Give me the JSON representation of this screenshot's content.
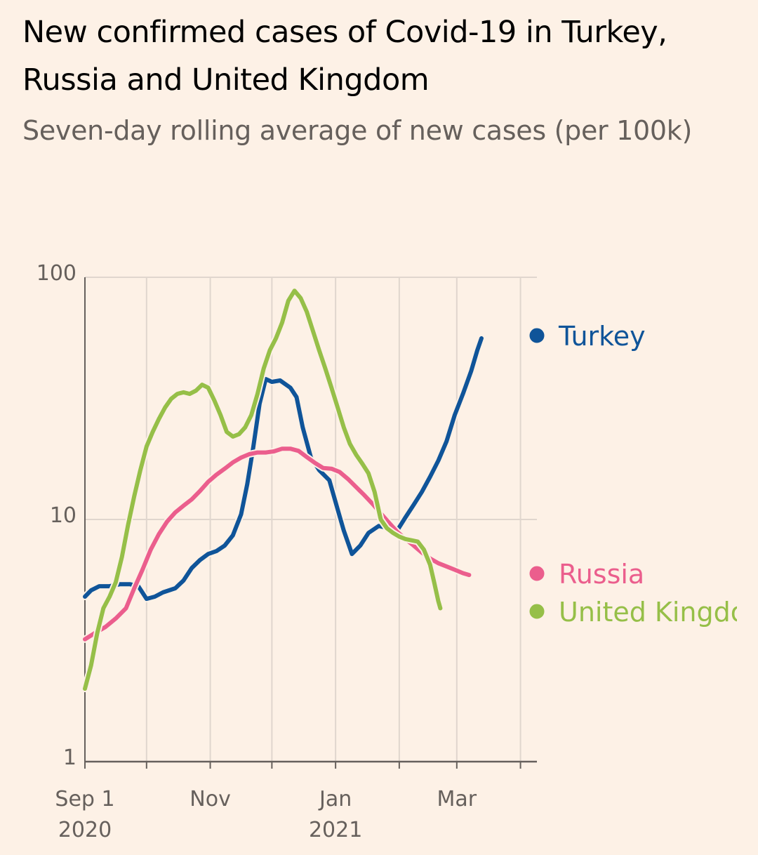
{
  "title": "New confirmed cases of Covid-19 in Turkey, Russia and United Kingdom",
  "subtitle": "Seven-day rolling average of new cases (per 100k)",
  "chart_data": {
    "type": "line",
    "title": "New confirmed cases of Covid-19 in Turkey, Russia and United Kingdom",
    "subtitle": "Seven-day rolling average of new cases (per 100k)",
    "y_scale": "log",
    "ylim": [
      1,
      100
    ],
    "y_ticks": [
      {
        "value": 1,
        "label": "1"
      },
      {
        "value": 10,
        "label": "10"
      },
      {
        "value": 100,
        "label": "100"
      }
    ],
    "x_range_days": [
      0,
      220
    ],
    "x_ticks": [
      {
        "day": 0,
        "label": "Sep 1",
        "sublabel": "2020"
      },
      {
        "day": 30,
        "label": "",
        "sublabel": ""
      },
      {
        "day": 61,
        "label": "Nov",
        "sublabel": ""
      },
      {
        "day": 91,
        "label": "",
        "sublabel": ""
      },
      {
        "day": 122,
        "label": "Jan",
        "sublabel": "2021"
      },
      {
        "day": 153,
        "label": "",
        "sublabel": ""
      },
      {
        "day": 181,
        "label": "Mar",
        "sublabel": ""
      },
      {
        "day": 212,
        "label": "",
        "sublabel": ""
      }
    ],
    "x_label_note": "days since Sep 1 2020",
    "series": [
      {
        "name": "Turkey",
        "color": "#0f5499",
        "points": [
          [
            0,
            4.8
          ],
          [
            3,
            5.1
          ],
          [
            7,
            5.3
          ],
          [
            12,
            5.3
          ],
          [
            17,
            5.4
          ],
          [
            22,
            5.4
          ],
          [
            26,
            5.3
          ],
          [
            30,
            4.7
          ],
          [
            34,
            4.8
          ],
          [
            38,
            5.0
          ],
          [
            44,
            5.2
          ],
          [
            48,
            5.6
          ],
          [
            52,
            6.3
          ],
          [
            56,
            6.8
          ],
          [
            60,
            7.2
          ],
          [
            64,
            7.4
          ],
          [
            68,
            7.8
          ],
          [
            72,
            8.6
          ],
          [
            76,
            10.5
          ],
          [
            79,
            14
          ],
          [
            82,
            20
          ],
          [
            85,
            30
          ],
          [
            88,
            38
          ],
          [
            91,
            37
          ],
          [
            95,
            37.5
          ],
          [
            100,
            35
          ],
          [
            103,
            32
          ],
          [
            106,
            24
          ],
          [
            110,
            18
          ],
          [
            114,
            16
          ],
          [
            119,
            14.5
          ],
          [
            123,
            11
          ],
          [
            126,
            9
          ],
          [
            130,
            7.2
          ],
          [
            134,
            7.8
          ],
          [
            138,
            8.8
          ],
          [
            143,
            9.4
          ],
          [
            148,
            9.2
          ],
          [
            152,
            9.0
          ],
          [
            156,
            10.2
          ],
          [
            160,
            11.5
          ],
          [
            164,
            13
          ],
          [
            168,
            15
          ],
          [
            172,
            17.5
          ],
          [
            176,
            21
          ],
          [
            180,
            27
          ],
          [
            184,
            33
          ],
          [
            188,
            41
          ],
          [
            191,
            50
          ],
          [
            193,
            56
          ]
        ]
      },
      {
        "name": "Russia",
        "color": "#eb5e8d",
        "points": [
          [
            0,
            3.2
          ],
          [
            5,
            3.4
          ],
          [
            10,
            3.6
          ],
          [
            15,
            3.9
          ],
          [
            20,
            4.3
          ],
          [
            24,
            5.2
          ],
          [
            28,
            6.2
          ],
          [
            32,
            7.5
          ],
          [
            36,
            8.7
          ],
          [
            40,
            9.8
          ],
          [
            44,
            10.7
          ],
          [
            48,
            11.4
          ],
          [
            52,
            12.1
          ],
          [
            56,
            13.1
          ],
          [
            60,
            14.3
          ],
          [
            64,
            15.3
          ],
          [
            68,
            16.2
          ],
          [
            72,
            17.2
          ],
          [
            76,
            18
          ],
          [
            80,
            18.6
          ],
          [
            84,
            18.9
          ],
          [
            88,
            18.9
          ],
          [
            92,
            19.1
          ],
          [
            96,
            19.6
          ],
          [
            100,
            19.6
          ],
          [
            104,
            19.2
          ],
          [
            108,
            18.1
          ],
          [
            112,
            17.1
          ],
          [
            116,
            16.3
          ],
          [
            120,
            16.2
          ],
          [
            124,
            15.7
          ],
          [
            128,
            14.7
          ],
          [
            132,
            13.6
          ],
          [
            136,
            12.6
          ],
          [
            140,
            11.6
          ],
          [
            144,
            10.6
          ],
          [
            148,
            9.7
          ],
          [
            152,
            8.9
          ],
          [
            156,
            8.3
          ],
          [
            160,
            7.8
          ],
          [
            164,
            7.3
          ],
          [
            168,
            6.9
          ],
          [
            172,
            6.6
          ],
          [
            176,
            6.4
          ],
          [
            180,
            6.2
          ],
          [
            184,
            6.0
          ],
          [
            187,
            5.9
          ]
        ]
      },
      {
        "name": "United Kingdom",
        "color": "#96bf48",
        "points": [
          [
            0,
            2.0
          ],
          [
            3,
            2.5
          ],
          [
            6,
            3.4
          ],
          [
            9,
            4.3
          ],
          [
            12,
            4.8
          ],
          [
            15,
            5.5
          ],
          [
            18,
            7
          ],
          [
            21,
            9.5
          ],
          [
            24,
            12.5
          ],
          [
            27,
            16
          ],
          [
            30,
            20
          ],
          [
            33,
            23
          ],
          [
            36,
            26
          ],
          [
            39,
            29
          ],
          [
            42,
            31.5
          ],
          [
            45,
            33
          ],
          [
            48,
            33.5
          ],
          [
            51,
            33
          ],
          [
            54,
            34
          ],
          [
            57,
            36
          ],
          [
            60,
            35
          ],
          [
            63,
            31
          ],
          [
            66,
            27
          ],
          [
            69,
            23
          ],
          [
            72,
            22
          ],
          [
            75,
            22.5
          ],
          [
            78,
            24
          ],
          [
            81,
            27
          ],
          [
            84,
            33
          ],
          [
            87,
            42
          ],
          [
            90,
            50
          ],
          [
            93,
            56
          ],
          [
            96,
            65
          ],
          [
            99,
            80
          ],
          [
            102,
            88
          ],
          [
            105,
            82
          ],
          [
            108,
            72
          ],
          [
            111,
            60
          ],
          [
            114,
            50
          ],
          [
            117,
            42
          ],
          [
            120,
            35
          ],
          [
            123,
            29
          ],
          [
            126,
            24
          ],
          [
            129,
            20.5
          ],
          [
            132,
            18.5
          ],
          [
            135,
            17
          ],
          [
            138,
            15.5
          ],
          [
            141,
            13
          ],
          [
            144,
            10
          ],
          [
            147,
            9.2
          ],
          [
            150,
            8.8
          ],
          [
            153,
            8.5
          ],
          [
            156,
            8.3
          ],
          [
            159,
            8.2
          ],
          [
            162,
            8.1
          ],
          [
            165,
            7.5
          ],
          [
            168,
            6.5
          ],
          [
            170,
            5.5
          ],
          [
            172,
            4.6
          ],
          [
            173,
            4.3
          ]
        ]
      }
    ]
  },
  "legend": [
    {
      "label": "Turkey",
      "color": "#0f5499"
    },
    {
      "label": "Russia",
      "color": "#eb5e8d"
    },
    {
      "label": "United Kingdom",
      "color": "#96bf48"
    }
  ]
}
